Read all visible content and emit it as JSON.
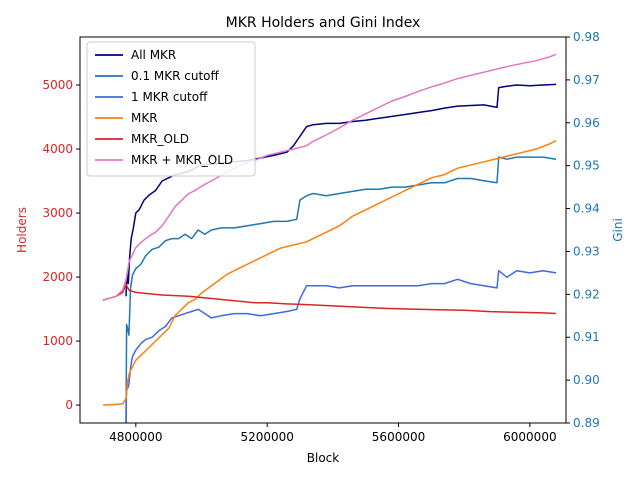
{
  "chart_data": {
    "type": "line",
    "title": "MKR Holders and Gini Index",
    "xlabel": "Block",
    "ylabel_left": "Holders",
    "ylabel_right": "Gini",
    "xlim": [
      4630000,
      6110000
    ],
    "ylim_left": [
      -280,
      5750
    ],
    "ylim_right": [
      0.89,
      0.98
    ],
    "x_ticks": [
      4800000,
      5200000,
      5600000,
      6000000
    ],
    "x_tick_labels": [
      "4800000",
      "5200000",
      "5600000",
      "6000000"
    ],
    "y_left_ticks": [
      0,
      1000,
      2000,
      3000,
      4000,
      5000
    ],
    "y_left_tick_labels": [
      "0",
      "1000",
      "2000",
      "3000",
      "4000",
      "5000"
    ],
    "y_right_ticks": [
      0.89,
      0.9,
      0.91,
      0.92,
      0.93,
      0.94,
      0.95,
      0.96,
      0.97,
      0.98
    ],
    "y_right_tick_labels": [
      "0.89",
      "0.90",
      "0.91",
      "0.92",
      "0.93",
      "0.94",
      "0.95",
      "0.96",
      "0.97",
      "0.98"
    ],
    "left_axis_color": "#d62728",
    "right_axis_color": "#1f77b4",
    "legend_position": "upper-left",
    "grid": false,
    "series": [
      {
        "name": "All MKR",
        "axis": "left",
        "color": "#000080",
        "x": [
          4770000,
          4773000,
          4777000,
          4781000,
          4786000,
          4792000,
          4800000,
          4810000,
          4825000,
          4840000,
          4860000,
          4880000,
          4900000,
          4920000,
          4940000,
          4960000,
          4980000,
          5000000,
          5030000,
          5060000,
          5100000,
          5140000,
          5180000,
          5220000,
          5260000,
          5280000,
          5300000,
          5320000,
          5340000,
          5380000,
          5420000,
          5460000,
          5500000,
          5540000,
          5580000,
          5620000,
          5660000,
          5700000,
          5740000,
          5780000,
          5820000,
          5860000,
          5900000,
          5905000,
          5930000,
          5960000,
          6000000,
          6040000,
          6080000
        ],
        "y": [
          1700,
          2050,
          1900,
          2300,
          2600,
          2750,
          3000,
          3050,
          3200,
          3280,
          3350,
          3500,
          3550,
          3600,
          3620,
          3650,
          3700,
          3750,
          3760,
          3780,
          3800,
          3820,
          3860,
          3900,
          3950,
          4050,
          4200,
          4350,
          4380,
          4400,
          4400,
          4430,
          4450,
          4480,
          4510,
          4540,
          4570,
          4600,
          4640,
          4670,
          4680,
          4690,
          4650,
          4960,
          4980,
          5000,
          4990,
          5000,
          5010
        ]
      },
      {
        "name": "0.1 MKR cutoff",
        "axis": "right",
        "color": "#1f77b4",
        "x": [
          4770000,
          4772000,
          4775000,
          4779000,
          4784000,
          4790000,
          4800000,
          4815000,
          4830000,
          4850000,
          4870000,
          4890000,
          4910000,
          4930000,
          4950000,
          4970000,
          4990000,
          5010000,
          5030000,
          5060000,
          5100000,
          5140000,
          5180000,
          5220000,
          5260000,
          5290000,
          5300000,
          5320000,
          5340000,
          5380000,
          5420000,
          5460000,
          5500000,
          5540000,
          5580000,
          5620000,
          5660000,
          5700000,
          5740000,
          5780000,
          5820000,
          5860000,
          5900000,
          5905000,
          5930000,
          5960000,
          6000000,
          6040000,
          6080000
        ],
        "y": [
          0.889,
          0.913,
          0.912,
          0.9105,
          0.9215,
          0.9245,
          0.926,
          0.927,
          0.929,
          0.9305,
          0.931,
          0.9325,
          0.933,
          0.933,
          0.934,
          0.933,
          0.935,
          0.934,
          0.935,
          0.9355,
          0.9355,
          0.936,
          0.9365,
          0.937,
          0.937,
          0.9375,
          0.942,
          0.943,
          0.9435,
          0.943,
          0.9435,
          0.944,
          0.9445,
          0.9445,
          0.945,
          0.945,
          0.9455,
          0.946,
          0.946,
          0.947,
          0.947,
          0.9465,
          0.946,
          0.952,
          0.9515,
          0.952,
          0.952,
          0.952,
          0.9515
        ]
      },
      {
        "name": "1 MKR cutoff",
        "axis": "right",
        "color": "#4169e1",
        "x": [
          4770000,
          4772000,
          4775000,
          4779000,
          4784000,
          4790000,
          4800000,
          4815000,
          4830000,
          4850000,
          4870000,
          4890000,
          4910000,
          4930000,
          4950000,
          4970000,
          4990000,
          5010000,
          5030000,
          5060000,
          5100000,
          5140000,
          5180000,
          5220000,
          5260000,
          5290000,
          5300000,
          5320000,
          5340000,
          5380000,
          5420000,
          5460000,
          5500000,
          5540000,
          5580000,
          5620000,
          5660000,
          5700000,
          5740000,
          5780000,
          5820000,
          5860000,
          5900000,
          5905000,
          5930000,
          5960000,
          6000000,
          6040000,
          6080000
        ],
        "y": [
          0.889,
          0.9,
          0.898,
          0.899,
          0.903,
          0.9055,
          0.907,
          0.9085,
          0.9095,
          0.91,
          0.9115,
          0.9125,
          0.9145,
          0.915,
          0.9155,
          0.916,
          0.9165,
          0.9155,
          0.9145,
          0.915,
          0.9155,
          0.9155,
          0.915,
          0.9155,
          0.916,
          0.9165,
          0.919,
          0.922,
          0.922,
          0.922,
          0.9215,
          0.922,
          0.922,
          0.922,
          0.922,
          0.922,
          0.922,
          0.9225,
          0.9225,
          0.9235,
          0.9225,
          0.922,
          0.9215,
          0.9255,
          0.924,
          0.9255,
          0.925,
          0.9255,
          0.925
        ]
      },
      {
        "name": "MKR",
        "axis": "left",
        "color": "#ff7f0e",
        "x": [
          4700000,
          4720000,
          4740000,
          4760000,
          4770000,
          4775000,
          4780000,
          4790000,
          4800000,
          4820000,
          4840000,
          4860000,
          4880000,
          4900000,
          4920000,
          4940000,
          4960000,
          4980000,
          5000000,
          5040000,
          5080000,
          5120000,
          5160000,
          5200000,
          5240000,
          5280000,
          5320000,
          5340000,
          5380000,
          5420000,
          5460000,
          5500000,
          5540000,
          5580000,
          5620000,
          5660000,
          5700000,
          5740000,
          5780000,
          5820000,
          5860000,
          5900000,
          5940000,
          5980000,
          6020000,
          6060000,
          6080000
        ],
        "y": [
          0,
          5,
          10,
          20,
          100,
          350,
          500,
          600,
          700,
          800,
          900,
          1000,
          1100,
          1200,
          1400,
          1500,
          1600,
          1650,
          1750,
          1900,
          2050,
          2150,
          2250,
          2350,
          2450,
          2500,
          2550,
          2600,
          2700,
          2800,
          2950,
          3050,
          3150,
          3250,
          3350,
          3450,
          3550,
          3600,
          3700,
          3750,
          3800,
          3850,
          3900,
          3950,
          4000,
          4080,
          4130
        ]
      },
      {
        "name": "MKR_OLD",
        "axis": "left",
        "color": "#d62728",
        "x": [
          4700000,
          4720000,
          4740000,
          4760000,
          4770000,
          4780000,
          4800000,
          4840000,
          4880000,
          4920000,
          4960000,
          5000000,
          5040000,
          5080000,
          5120000,
          5160000,
          5200000,
          5260000,
          5320000,
          5400000,
          5480000,
          5560000,
          5640000,
          5720000,
          5800000,
          5880000,
          5960000,
          6040000,
          6080000
        ],
        "y": [
          1640,
          1670,
          1700,
          1760,
          1880,
          1790,
          1760,
          1740,
          1720,
          1710,
          1700,
          1680,
          1660,
          1640,
          1620,
          1600,
          1600,
          1580,
          1570,
          1550,
          1530,
          1510,
          1500,
          1490,
          1480,
          1460,
          1450,
          1440,
          1430
        ]
      },
      {
        "name": "MKR + MKR_OLD",
        "axis": "left",
        "color": "#e377c2",
        "x": [
          4700000,
          4720000,
          4740000,
          4760000,
          4770000,
          4775000,
          4780000,
          4790000,
          4800000,
          4820000,
          4840000,
          4860000,
          4880000,
          4900000,
          4920000,
          4940000,
          4960000,
          4980000,
          5000000,
          5040000,
          5080000,
          5120000,
          5160000,
          5200000,
          5240000,
          5280000,
          5320000,
          5340000,
          5380000,
          5420000,
          5460000,
          5500000,
          5540000,
          5580000,
          5620000,
          5660000,
          5700000,
          5740000,
          5780000,
          5820000,
          5860000,
          5900000,
          5940000,
          5980000,
          6020000,
          6060000,
          6080000
        ],
        "y": [
          1640,
          1670,
          1700,
          1800,
          1950,
          2100,
          2250,
          2350,
          2460,
          2560,
          2640,
          2700,
          2800,
          2950,
          3100,
          3200,
          3300,
          3350,
          3420,
          3530,
          3650,
          3750,
          3820,
          3900,
          3950,
          4000,
          4050,
          4120,
          4220,
          4330,
          4450,
          4550,
          4650,
          4750,
          4820,
          4900,
          4970,
          5030,
          5100,
          5150,
          5200,
          5250,
          5300,
          5340,
          5380,
          5440,
          5480
        ]
      }
    ]
  }
}
